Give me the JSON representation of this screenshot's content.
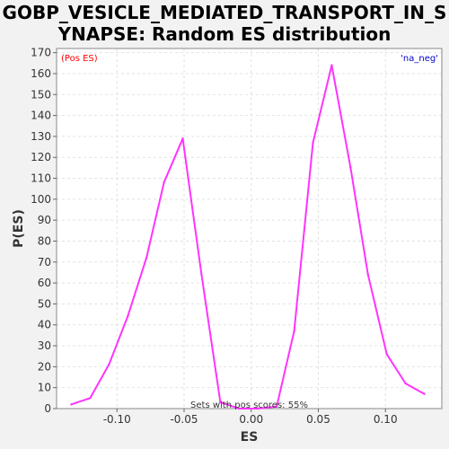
{
  "chart_data": {
    "type": "line",
    "title_lines": [
      "GOBP_VESICLE_MEDIATED_TRANSPORT_IN_S",
      "YNAPSE: Random ES distribution"
    ],
    "xlabel": "ES",
    "ylabel": "P(ES)",
    "xlim": [
      -0.145,
      0.142
    ],
    "ylim": [
      0,
      172
    ],
    "x_ticks": [
      -0.1,
      -0.05,
      0.0,
      0.05,
      0.1
    ],
    "x_tick_labels": [
      "-0.10",
      "-0.05",
      "0.00",
      "0.05",
      "0.10"
    ],
    "y_ticks": [
      0,
      10,
      20,
      30,
      40,
      50,
      60,
      70,
      80,
      90,
      100,
      110,
      120,
      130,
      140,
      150,
      160,
      170
    ],
    "y_tick_labels": [
      "0",
      "10",
      "20",
      "30",
      "40",
      "50",
      "60",
      "70",
      "80",
      "90",
      "100",
      "110",
      "120",
      "130",
      "140",
      "150",
      "160",
      "170"
    ],
    "grid": true,
    "line_color": "#ff33ff",
    "series": [
      {
        "x": [
          -0.134,
          -0.12,
          -0.106,
          -0.092,
          -0.078,
          -0.065,
          -0.051,
          -0.037,
          -0.023,
          -0.009,
          0.005,
          0.019,
          0.032,
          0.046,
          0.06,
          0.074,
          0.087,
          0.101,
          0.115,
          0.129
        ],
        "y": [
          2,
          5,
          21,
          44,
          72,
          108,
          129,
          64,
          3,
          0,
          0,
          1,
          37,
          127,
          164,
          115,
          64,
          26,
          12,
          7
        ]
      }
    ],
    "annotations": {
      "pos_label": "(Pos ES)",
      "pos_color": "#ff0000",
      "neg_label": "'na_neg'",
      "neg_color": "#0000cc",
      "footer": "Sets with pos scores: 55%"
    }
  }
}
